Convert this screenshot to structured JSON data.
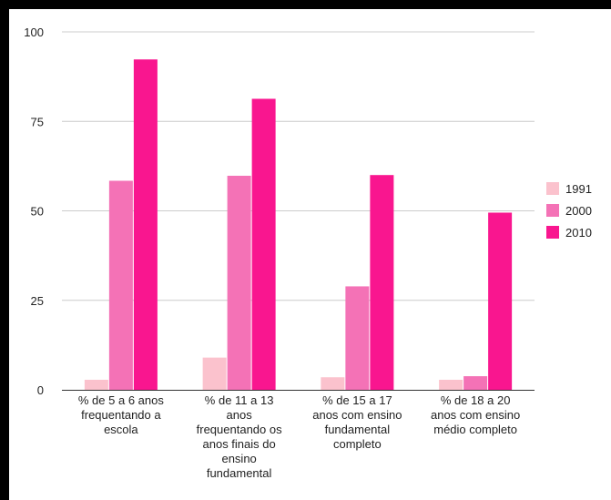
{
  "chart_data": {
    "type": "bar",
    "categories": [
      [
        "% de 5 a 6 anos",
        "frequentando a",
        "escola"
      ],
      [
        "% de 11 a 13",
        "anos",
        "frequentando os",
        "anos finais do",
        "ensino",
        "fundamental"
      ],
      [
        "% de 15 a 17",
        "anos com ensino",
        "fundamental",
        "completo"
      ],
      [
        "% de 18 a 20",
        "anos com ensino",
        "médio completo"
      ]
    ],
    "series": [
      {
        "name": "1991",
        "color": "#fbc2cd",
        "values": [
          2.8,
          9.0,
          3.5,
          2.8
        ]
      },
      {
        "name": "2000",
        "color": "#f472b6",
        "values": [
          58.4,
          59.8,
          28.9,
          3.8
        ]
      },
      {
        "name": "2010",
        "color": "#f9168f",
        "values": [
          92.3,
          81.3,
          60.0,
          49.5
        ]
      }
    ],
    "ylim": [
      0,
      100
    ],
    "yticks": [
      "0",
      "25",
      "50",
      "75",
      "100"
    ],
    "grid": true,
    "legend_position": "right"
  }
}
